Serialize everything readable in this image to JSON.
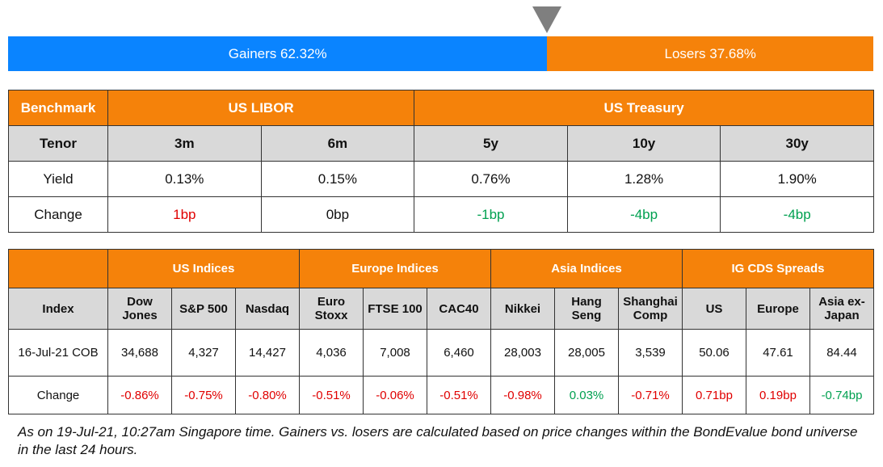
{
  "breadth": {
    "gainers": {
      "label": "Gainers 62.32%",
      "value": 62.32,
      "color": "#0a84ff"
    },
    "losers": {
      "label": "Losers 37.68%",
      "value": 37.68,
      "color": "#f5820a"
    }
  },
  "rates_table": {
    "header": [
      "Benchmark",
      "US LIBOR",
      "US Treasury"
    ],
    "tenors": [
      "Tenor",
      "3m",
      "6m",
      "5y",
      "10y",
      "30y"
    ],
    "rows": [
      [
        "Yield",
        "0.13%",
        "0.15%",
        "0.76%",
        "1.28%",
        "1.90%"
      ],
      [
        "Change",
        "1bp",
        "0bp",
        "-1bp",
        "-4bp",
        "-4bp"
      ]
    ],
    "row_colors": [
      null,
      [
        null,
        "#e00000",
        null,
        "#00a050",
        "#00a050",
        "#00a050"
      ]
    ]
  },
  "indices_table": {
    "groups": [
      "US Indices",
      "Europe Indices",
      "Asia Indices",
      "IG CDS Spreads"
    ],
    "header": [
      "Index",
      "Dow Jones",
      "S&P 500",
      "Nasdaq",
      "Euro Stoxx",
      "FTSE 100",
      "CAC40",
      "Nikkei",
      "Hang Seng",
      "Shanghai Comp",
      "US",
      "Europe",
      "Asia ex-Japan"
    ],
    "rows": [
      [
        "16-Jul-21 COB",
        "34,688",
        "4,327",
        "14,427",
        "4,036",
        "7,008",
        "6,460",
        "28,003",
        "28,005",
        "3,539",
        "50.06",
        "47.61",
        "84.44"
      ],
      [
        "Change",
        "-0.86%",
        "-0.75%",
        "-0.80%",
        "-0.51%",
        "-0.06%",
        "-0.51%",
        "-0.98%",
        "0.03%",
        "-0.71%",
        "0.71bp",
        "0.19bp",
        "-0.74bp"
      ]
    ],
    "row_colors": [
      null,
      [
        null,
        "#e00000",
        "#e00000",
        "#e00000",
        "#e00000",
        "#e00000",
        "#e00000",
        "#e00000",
        "#00a050",
        "#e00000",
        "#e00000",
        "#e00000",
        "#00a050"
      ]
    ]
  },
  "footnote": "As on 19-Jul-21, 10:27am Singapore time. Gainers vs. losers are calculated based on price changes within the BondEvalue bond universe in the last 24 hours."
}
